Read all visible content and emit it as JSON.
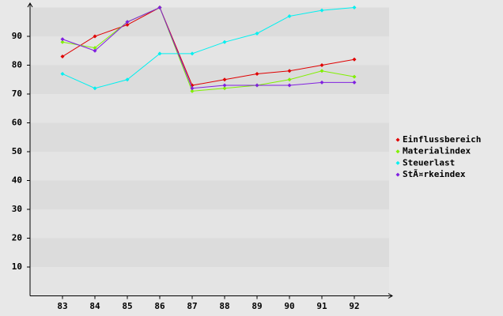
{
  "chart_data": {
    "type": "line",
    "categories": [
      "83",
      "84",
      "85",
      "86",
      "87",
      "88",
      "89",
      "90",
      "91",
      "92"
    ],
    "series": [
      {
        "name": "Einflussbereich",
        "color": "#e00000",
        "values": [
          83,
          90,
          94,
          100,
          73,
          75,
          77,
          78,
          80,
          82
        ]
      },
      {
        "name": "Materialindex",
        "color": "#80f000",
        "values": [
          88,
          86,
          95,
          100,
          71,
          72,
          73,
          75,
          78,
          76
        ]
      },
      {
        "name": "Steuerlast",
        "color": "#00f0f0",
        "values": [
          77,
          72,
          75,
          84,
          84,
          88,
          91,
          97,
          99,
          100
        ]
      },
      {
        "name": "StÃ¤rkeindex",
        "color": "#8020e0",
        "values": [
          89,
          85,
          95,
          100,
          72,
          73,
          73,
          73,
          74,
          74
        ]
      }
    ],
    "ylim": [
      0,
      100
    ],
    "yticks": [
      10,
      20,
      30,
      40,
      50,
      60,
      70,
      80,
      90
    ],
    "grid": true
  }
}
